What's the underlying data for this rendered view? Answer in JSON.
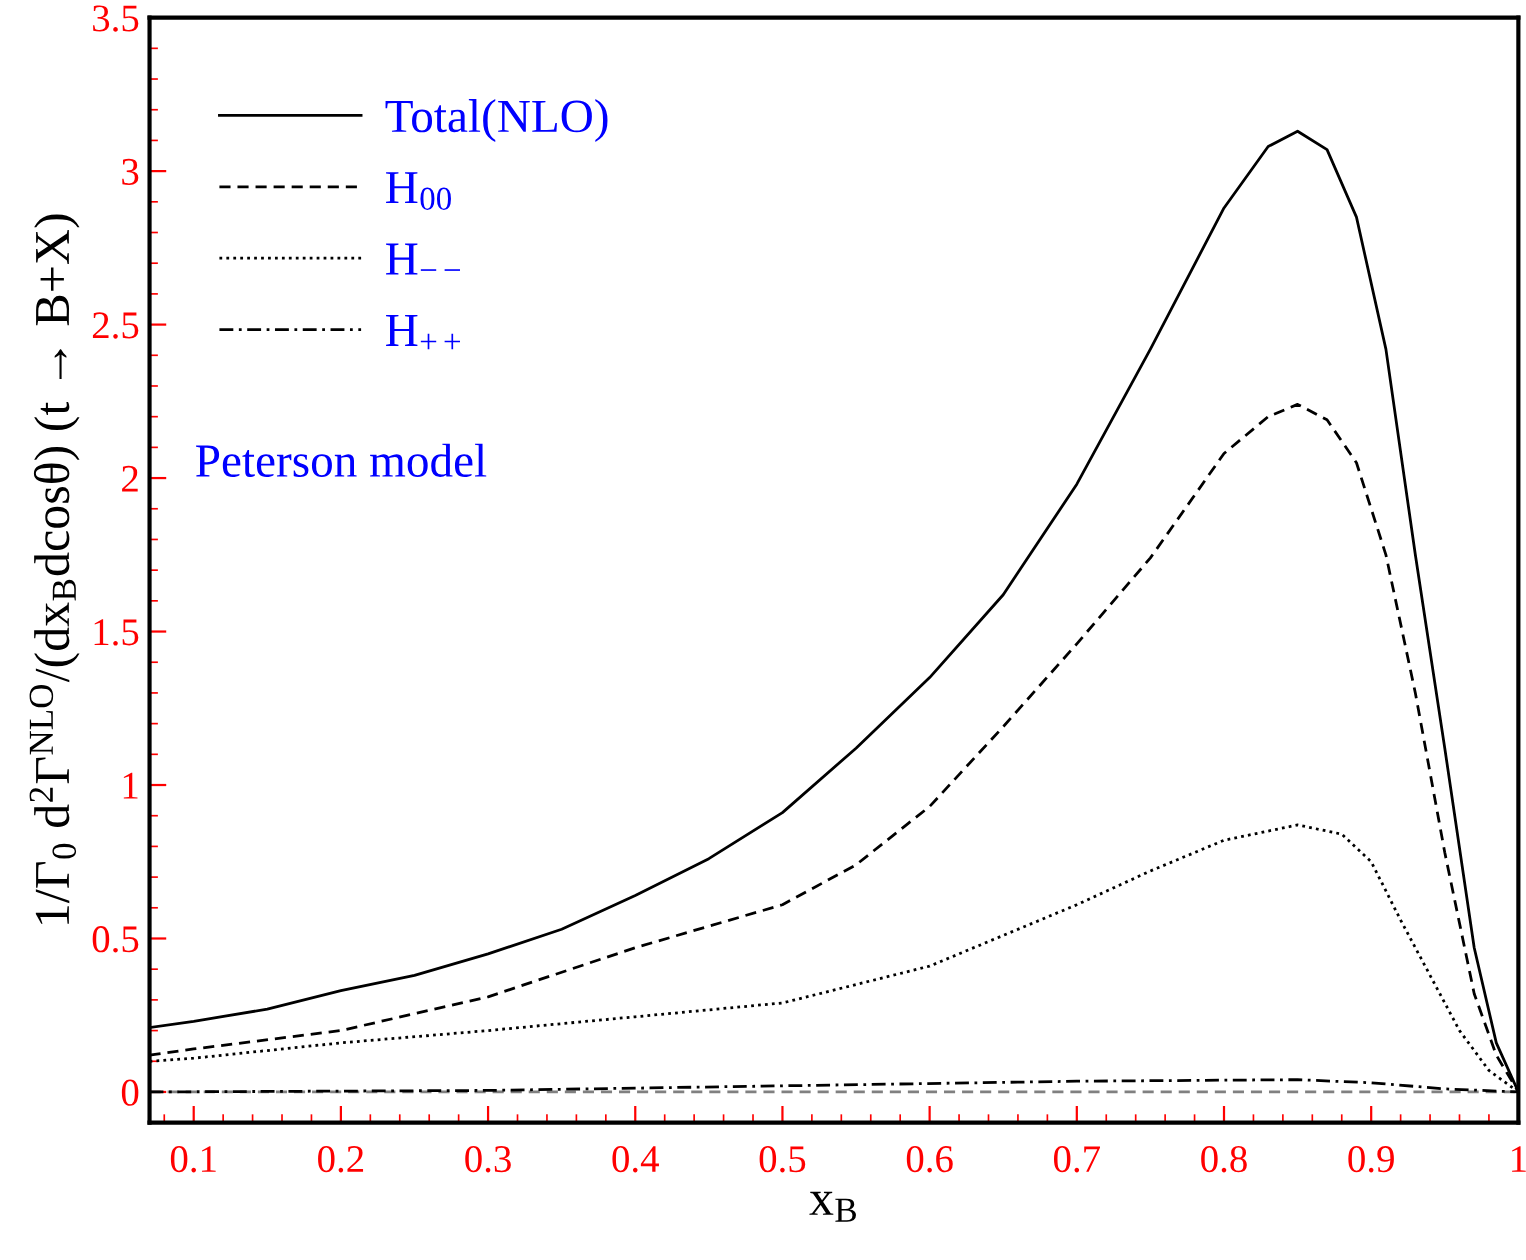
{
  "chart_data": {
    "type": "line",
    "xlabel": "x$_{B}$",
    "ylabel": "1/Γ$_{0}$ d$^{2}$Γ$^{NLO}$/(dx$_{B}$dcosθ) (t → B+X)",
    "xlim": [
      0.07,
      1.0
    ],
    "ylim": [
      -0.1,
      3.5
    ],
    "xticks": [
      0.1,
      0.2,
      0.3,
      0.4,
      0.5,
      0.6,
      0.7,
      0.8,
      0.9,
      {
        "value": 1.0,
        "label": "1"
      }
    ],
    "yticks": [
      0,
      0.5,
      1,
      1.5,
      2,
      2.5,
      3,
      3.5
    ],
    "grid": false,
    "legend": "top left",
    "marker": "none",
    "annotations": [
      "Peterson model"
    ],
    "ref_lines": [
      {
        "axis": "y",
        "value": 0,
        "label": null,
        "color": "#808080",
        "line_style": "dashed"
      }
    ],
    "series": [
      {
        "name": "Total(NLO)",
        "color": "#000000",
        "line_style": "solid",
        "x": [
          0.07,
          0.1,
          0.15,
          0.2,
          0.25,
          0.3,
          0.35,
          0.4,
          0.45,
          0.5,
          0.55,
          0.6,
          0.65,
          0.7,
          0.75,
          0.8,
          0.83,
          0.85,
          0.87,
          0.89,
          0.91,
          0.93,
          0.95,
          0.97,
          0.985,
          1.0
        ],
        "values": [
          0.21,
          0.23,
          0.27,
          0.33,
          0.38,
          0.45,
          0.53,
          0.64,
          0.76,
          0.91,
          1.12,
          1.35,
          1.62,
          1.98,
          2.42,
          2.88,
          3.08,
          3.13,
          3.07,
          2.85,
          2.42,
          1.75,
          1.12,
          0.47,
          0.16,
          0
        ]
      },
      {
        "name": "H$_{00}$",
        "color": "#000000",
        "line_style": "dashed",
        "x": [
          0.07,
          0.1,
          0.2,
          0.3,
          0.4,
          0.5,
          0.55,
          0.6,
          0.65,
          0.7,
          0.75,
          0.8,
          0.83,
          0.85,
          0.87,
          0.89,
          0.91,
          0.93,
          0.95,
          0.97,
          0.985,
          1.0
        ],
        "values": [
          0.12,
          0.14,
          0.2,
          0.31,
          0.47,
          0.61,
          0.74,
          0.93,
          1.19,
          1.46,
          1.74,
          2.08,
          2.2,
          2.24,
          2.19,
          2.05,
          1.75,
          1.3,
          0.78,
          0.32,
          0.12,
          0
        ]
      },
      {
        "name": "H$_{−−}$",
        "color": "#000000",
        "line_style": "dotted",
        "x": [
          0.07,
          0.1,
          0.2,
          0.3,
          0.4,
          0.5,
          0.55,
          0.6,
          0.65,
          0.7,
          0.75,
          0.8,
          0.85,
          0.88,
          0.9,
          0.92,
          0.94,
          0.96,
          0.98,
          1.0
        ],
        "values": [
          0.1,
          0.11,
          0.16,
          0.2,
          0.245,
          0.29,
          0.35,
          0.41,
          0.51,
          0.61,
          0.72,
          0.82,
          0.87,
          0.84,
          0.75,
          0.56,
          0.38,
          0.2,
          0.07,
          0
        ]
      },
      {
        "name": "H$_{++}$",
        "color": "#000000",
        "line_style": "dashdot",
        "x": [
          0.07,
          0.3,
          0.5,
          0.7,
          0.85,
          0.9,
          0.95,
          1.0
        ],
        "values": [
          0.0,
          0.005,
          0.02,
          0.035,
          0.04,
          0.03,
          0.01,
          0
        ]
      }
    ]
  }
}
